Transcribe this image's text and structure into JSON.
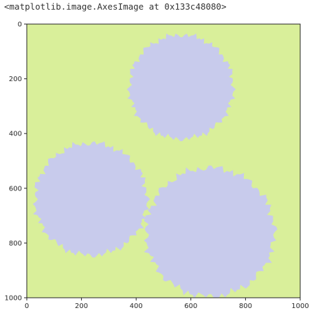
{
  "output_text": "<matplotlib.image.AxesImage at 0x133c48080>",
  "chart_data": {
    "type": "heatmap",
    "title": "",
    "xlabel": "",
    "ylabel": "",
    "xlim": [
      0,
      1000
    ],
    "ylim": [
      1000,
      0
    ],
    "x_ticks": [
      0,
      200,
      400,
      600,
      800,
      1000
    ],
    "y_ticks": [
      0,
      200,
      400,
      600,
      800,
      1000
    ],
    "x_tick_labels": [
      "0",
      "200",
      "400",
      "600",
      "800",
      "1000"
    ],
    "y_tick_labels": [
      "0",
      "200",
      "400",
      "600",
      "800",
      "1000"
    ],
    "colors": {
      "background": "#d9ef9a",
      "blob": "#c8cbec"
    },
    "blobs": [
      {
        "cx": 565,
        "cy": 230,
        "r": 190
      },
      {
        "cx": 235,
        "cy": 640,
        "r": 205
      },
      {
        "cx": 670,
        "cy": 760,
        "r": 235
      }
    ]
  }
}
